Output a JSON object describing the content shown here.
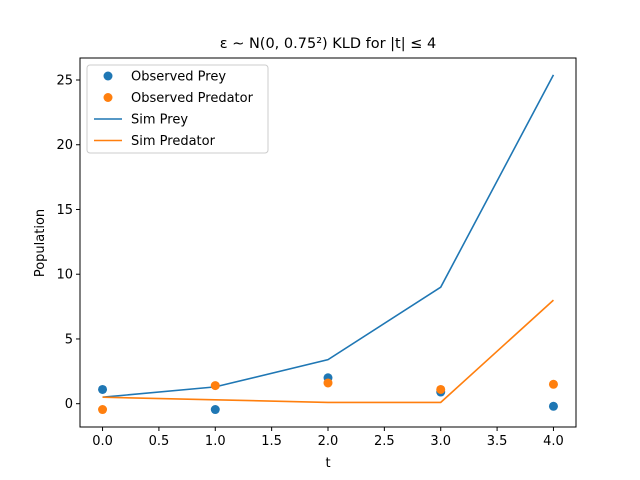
{
  "chart_data": {
    "type": "line",
    "title": "ε ∼ N(0, 0.75²) KLD for |t| ≤ 4",
    "xlabel": "t",
    "ylabel": "Population",
    "xlim": [
      -0.2,
      4.2
    ],
    "ylim": [
      -1.8,
      26.7
    ],
    "xticks": [
      0.0,
      0.5,
      1.0,
      1.5,
      2.0,
      2.5,
      3.0,
      3.5,
      4.0
    ],
    "xtick_labels": [
      "0.0",
      "0.5",
      "1.0",
      "1.5",
      "2.0",
      "2.5",
      "3.0",
      "3.5",
      "4.0"
    ],
    "yticks": [
      0,
      5,
      10,
      15,
      20,
      25
    ],
    "ytick_labels": [
      "0",
      "5",
      "10",
      "15",
      "20",
      "25"
    ],
    "grid": false,
    "legend_position": "top-left",
    "series": [
      {
        "name": "Observed Prey",
        "kind": "scatter",
        "color": "#1f77b4",
        "x": [
          0,
          1,
          2,
          3,
          4
        ],
        "y": [
          1.1,
          -0.45,
          2.0,
          0.9,
          -0.2
        ]
      },
      {
        "name": "Observed Predator",
        "kind": "scatter",
        "color": "#ff7f0e",
        "x": [
          0,
          1,
          2,
          3,
          4
        ],
        "y": [
          -0.45,
          1.4,
          1.6,
          1.1,
          1.5
        ]
      },
      {
        "name": "Sim Prey",
        "kind": "line",
        "color": "#1f77b4",
        "x": [
          0,
          1,
          2,
          3,
          4
        ],
        "y": [
          0.5,
          1.3,
          3.4,
          9.0,
          25.4
        ]
      },
      {
        "name": "Sim Predator",
        "kind": "line",
        "color": "#ff7f0e",
        "x": [
          0,
          1,
          2,
          3,
          4
        ],
        "y": [
          0.5,
          0.3,
          0.1,
          0.1,
          8.0
        ]
      }
    ]
  }
}
